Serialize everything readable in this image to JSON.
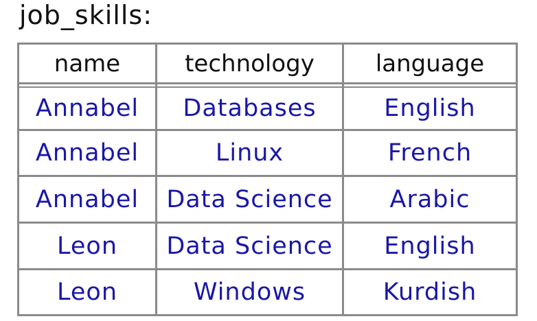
{
  "title": "job_skills:",
  "table": {
    "headers": [
      "name",
      "technology",
      "language"
    ],
    "rows": [
      [
        "Annabel",
        "Databases",
        "English"
      ],
      [
        "Annabel",
        "Linux",
        "French"
      ],
      [
        "Annabel",
        "Data Science",
        "Arabic"
      ],
      [
        "Leon",
        "Data Science",
        "English"
      ],
      [
        "Leon",
        "Windows",
        "Kurdish"
      ]
    ]
  },
  "colors": {
    "header_text": "#111111",
    "cell_text": "#1a17a8",
    "grid": "#8a8a8a"
  }
}
